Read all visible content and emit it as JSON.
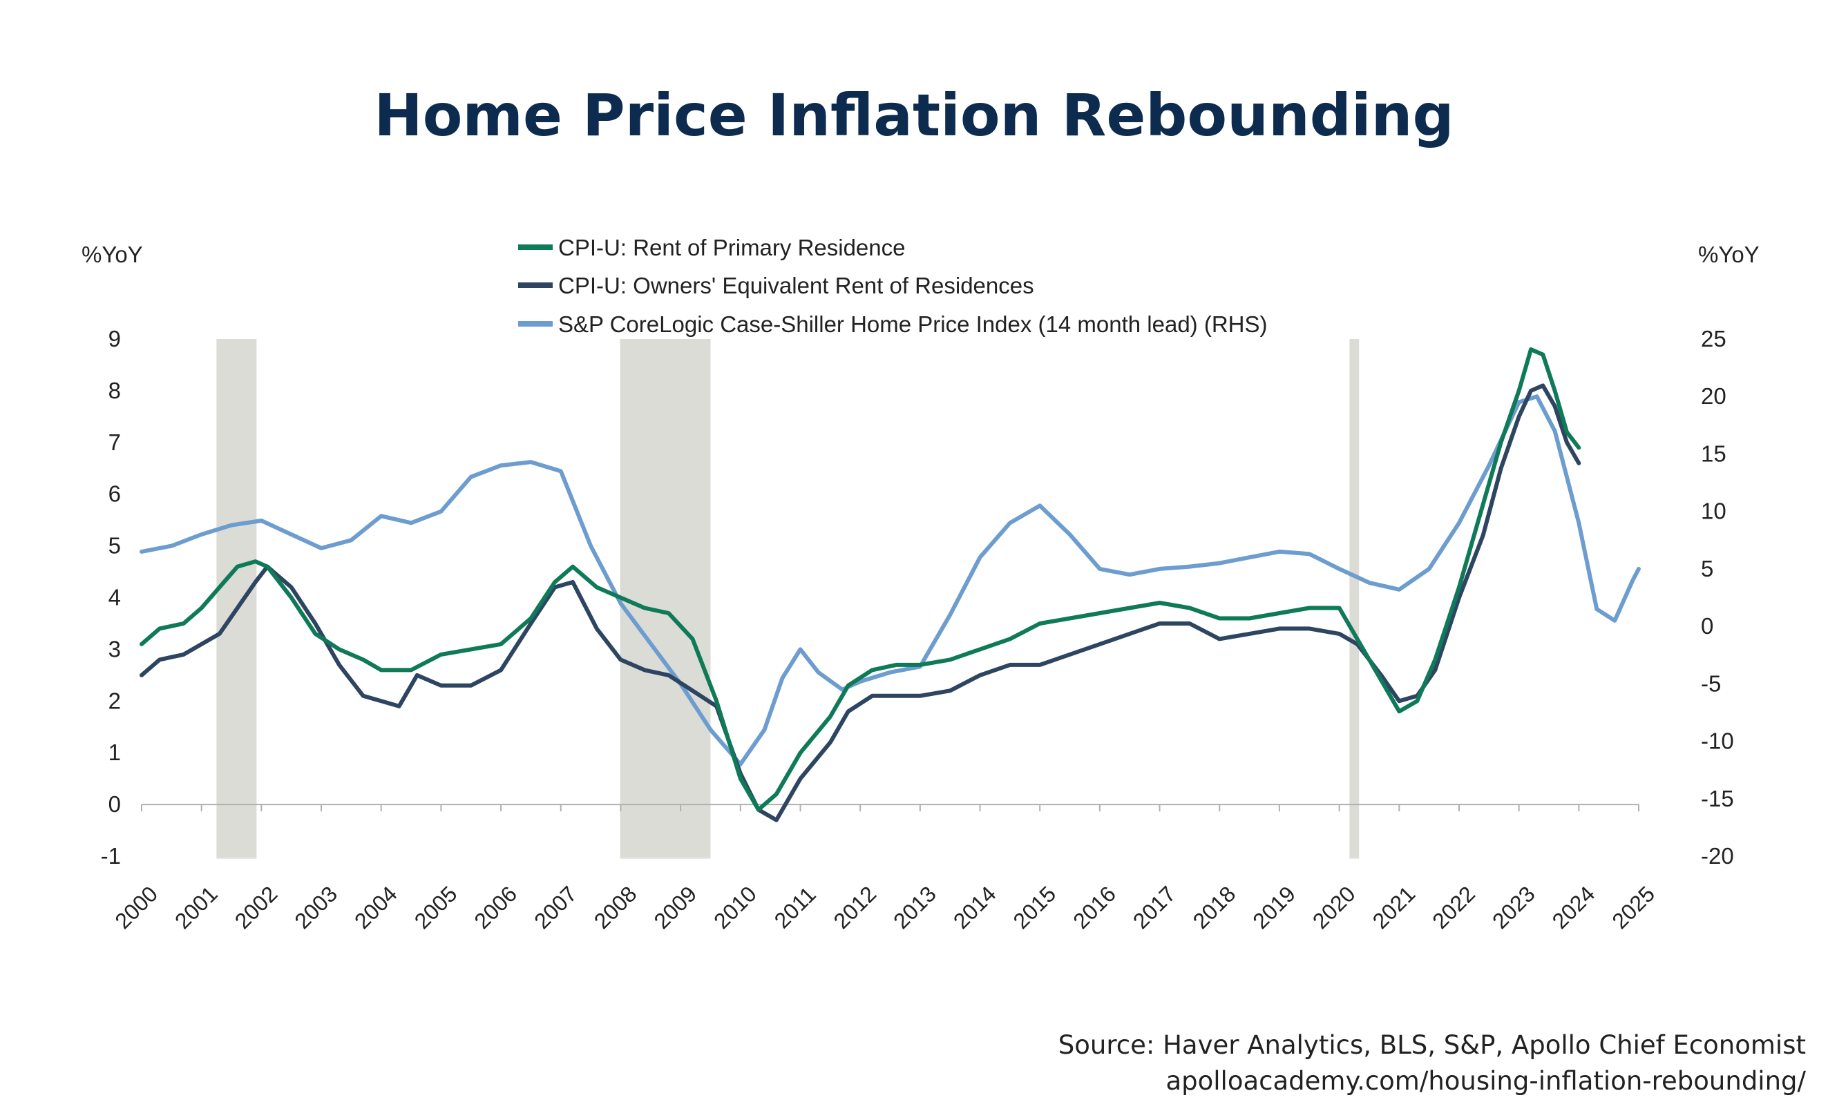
{
  "title": "Home Price Inflation Rebounding",
  "source_line1": "Source: Haver Analytics, BLS, S&P, Apollo Chief Economist",
  "source_line2": "apolloacademy.com/housing-inflation-rebounding/",
  "chart_data": {
    "type": "line",
    "left_axis": {
      "label": "%YoY",
      "min": -1,
      "max": 9,
      "ticks": [
        -1,
        0,
        1,
        2,
        3,
        4,
        5,
        6,
        7,
        8,
        9
      ]
    },
    "right_axis": {
      "label": "%YoY",
      "min": -20,
      "max": 25,
      "ticks": [
        -20,
        -15,
        -10,
        -5,
        0,
        5,
        10,
        15,
        20,
        25
      ]
    },
    "x_axis": {
      "min": 2000,
      "max": 2025,
      "ticks": [
        2000,
        2001,
        2002,
        2003,
        2004,
        2005,
        2006,
        2007,
        2008,
        2009,
        2010,
        2011,
        2012,
        2013,
        2014,
        2015,
        2016,
        2017,
        2018,
        2019,
        2020,
        2021,
        2022,
        2023,
        2024,
        2025
      ]
    },
    "recessions": [
      [
        2001.25,
        2001.92
      ],
      [
        2007.99,
        2009.5
      ],
      [
        2020.17,
        2020.33
      ]
    ],
    "legend_position": "top-center",
    "colors": {
      "rent": "#0f7a57",
      "oer": "#2e4562",
      "hpi": "#6d9dcf",
      "recession": "#dcdcd6"
    },
    "series": [
      {
        "name": "CPI-U: Rent of Primary Residence",
        "axis": "left",
        "x": [
          2000.0,
          2000.3,
          2000.7,
          2001.0,
          2001.3,
          2001.6,
          2001.9,
          2002.1,
          2002.5,
          2002.9,
          2003.3,
          2003.7,
          2004.0,
          2004.5,
          2005.0,
          2005.5,
          2006.0,
          2006.5,
          2006.9,
          2007.2,
          2007.6,
          2008.0,
          2008.4,
          2008.8,
          2009.2,
          2009.6,
          2010.0,
          2010.3,
          2010.6,
          2011.0,
          2011.5,
          2011.8,
          2012.2,
          2012.6,
          2013.0,
          2013.5,
          2014.0,
          2014.5,
          2015.0,
          2015.5,
          2016.0,
          2016.5,
          2017.0,
          2017.5,
          2018.0,
          2018.5,
          2019.0,
          2019.5,
          2020.0,
          2020.3,
          2020.7,
          2021.0,
          2021.3,
          2021.6,
          2022.0,
          2022.4,
          2022.7,
          2023.0,
          2023.2,
          2023.4,
          2023.6,
          2023.8,
          2024.0
        ],
        "y": [
          3.1,
          3.4,
          3.5,
          3.8,
          4.2,
          4.6,
          4.7,
          4.6,
          4.0,
          3.3,
          3.0,
          2.8,
          2.6,
          2.6,
          2.9,
          3.0,
          3.1,
          3.6,
          4.3,
          4.6,
          4.2,
          4.0,
          3.8,
          3.7,
          3.2,
          2.0,
          0.5,
          -0.1,
          0.2,
          1.0,
          1.7,
          2.3,
          2.6,
          2.7,
          2.7,
          2.8,
          3.0,
          3.2,
          3.5,
          3.6,
          3.7,
          3.8,
          3.9,
          3.8,
          3.6,
          3.6,
          3.7,
          3.8,
          3.8,
          3.2,
          2.4,
          1.8,
          2.0,
          2.8,
          4.2,
          5.8,
          7.0,
          8.0,
          8.8,
          8.7,
          8.0,
          7.2,
          6.9
        ]
      },
      {
        "name": "CPI-U: Owners' Equivalent Rent of Residences",
        "axis": "left",
        "x": [
          2000.0,
          2000.3,
          2000.7,
          2001.0,
          2001.3,
          2001.6,
          2001.9,
          2002.1,
          2002.5,
          2002.9,
          2003.3,
          2003.7,
          2004.0,
          2004.3,
          2004.6,
          2005.0,
          2005.5,
          2006.0,
          2006.5,
          2006.9,
          2007.2,
          2007.6,
          2008.0,
          2008.4,
          2008.8,
          2009.2,
          2009.6,
          2010.0,
          2010.3,
          2010.6,
          2011.0,
          2011.5,
          2011.8,
          2012.2,
          2012.6,
          2013.0,
          2013.5,
          2014.0,
          2014.5,
          2015.0,
          2015.5,
          2016.0,
          2016.5,
          2017.0,
          2017.5,
          2018.0,
          2018.5,
          2019.0,
          2019.5,
          2020.0,
          2020.3,
          2020.7,
          2021.0,
          2021.3,
          2021.6,
          2022.0,
          2022.4,
          2022.7,
          2023.0,
          2023.2,
          2023.4,
          2023.6,
          2023.8,
          2024.0
        ],
        "y": [
          2.5,
          2.8,
          2.9,
          3.1,
          3.3,
          3.8,
          4.3,
          4.6,
          4.2,
          3.5,
          2.7,
          2.1,
          2.0,
          1.9,
          2.5,
          2.3,
          2.3,
          2.6,
          3.5,
          4.2,
          4.3,
          3.4,
          2.8,
          2.6,
          2.5,
          2.2,
          1.9,
          0.6,
          -0.1,
          -0.3,
          0.5,
          1.2,
          1.8,
          2.1,
          2.1,
          2.1,
          2.2,
          2.5,
          2.7,
          2.7,
          2.9,
          3.1,
          3.3,
          3.5,
          3.5,
          3.2,
          3.3,
          3.4,
          3.4,
          3.3,
          3.1,
          2.5,
          2.0,
          2.1,
          2.6,
          4.0,
          5.2,
          6.5,
          7.5,
          8.0,
          8.1,
          7.7,
          7.0,
          6.6
        ]
      },
      {
        "name": "S&P CoreLogic Case-Shiller Home Price Index (14 month lead) (RHS)",
        "axis": "right",
        "x": [
          2000.0,
          2000.5,
          2001.0,
          2001.5,
          2002.0,
          2002.5,
          2003.0,
          2003.5,
          2004.0,
          2004.5,
          2005.0,
          2005.5,
          2006.0,
          2006.5,
          2007.0,
          2007.5,
          2008.0,
          2008.5,
          2009.0,
          2009.5,
          2010.0,
          2010.4,
          2010.7,
          2011.0,
          2011.3,
          2011.7,
          2012.0,
          2012.5,
          2013.0,
          2013.5,
          2014.0,
          2014.5,
          2015.0,
          2015.5,
          2016.0,
          2016.5,
          2017.0,
          2017.5,
          2018.0,
          2018.5,
          2019.0,
          2019.5,
          2020.0,
          2020.5,
          2021.0,
          2021.5,
          2022.0,
          2022.5,
          2023.0,
          2023.3,
          2023.6,
          2024.0,
          2024.3,
          2024.6,
          2024.9,
          2025.0
        ],
        "y": [
          6.5,
          7.0,
          8.0,
          8.8,
          9.2,
          8.0,
          6.8,
          7.5,
          9.6,
          9.0,
          10.0,
          13.0,
          14.0,
          14.3,
          13.5,
          7.0,
          2.0,
          -1.5,
          -5.0,
          -9.0,
          -12.0,
          -9.0,
          -4.5,
          -2.0,
          -4.0,
          -5.5,
          -4.8,
          -4.0,
          -3.5,
          1.0,
          6.0,
          9.0,
          10.5,
          8.0,
          5.0,
          4.5,
          5.0,
          5.2,
          5.5,
          6.0,
          6.5,
          6.3,
          5.0,
          3.8,
          3.2,
          5.0,
          9.0,
          14.0,
          19.5,
          20.0,
          17.0,
          9.0,
          1.5,
          0.5,
          4.0,
          5.0
        ]
      }
    ]
  }
}
